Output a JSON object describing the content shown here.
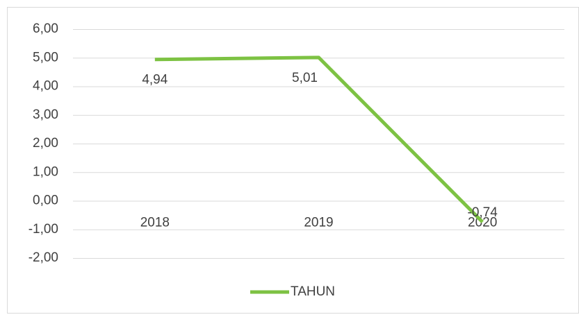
{
  "chart_data": {
    "type": "line",
    "categories": [
      "2018",
      "2019",
      "2020"
    ],
    "series": [
      {
        "name": "TAHUN",
        "color": "#7dc243",
        "values": [
          4.94,
          5.01,
          -0.74
        ],
        "value_labels": [
          "4,94",
          "5,01",
          "-0,74"
        ]
      }
    ],
    "ylim": [
      -2,
      6
    ],
    "yticks": [
      {
        "value": -2,
        "label": "-2,00"
      },
      {
        "value": -1,
        "label": "-1,00"
      },
      {
        "value": 0,
        "label": "0,00"
      },
      {
        "value": 1,
        "label": "1,00"
      },
      {
        "value": 2,
        "label": "2,00"
      },
      {
        "value": 3,
        "label": "3,00"
      },
      {
        "value": 4,
        "label": "4,00"
      },
      {
        "value": 5,
        "label": "5,00"
      },
      {
        "value": 6,
        "label": "6,00"
      }
    ],
    "grid": true,
    "legend": "bottom"
  }
}
